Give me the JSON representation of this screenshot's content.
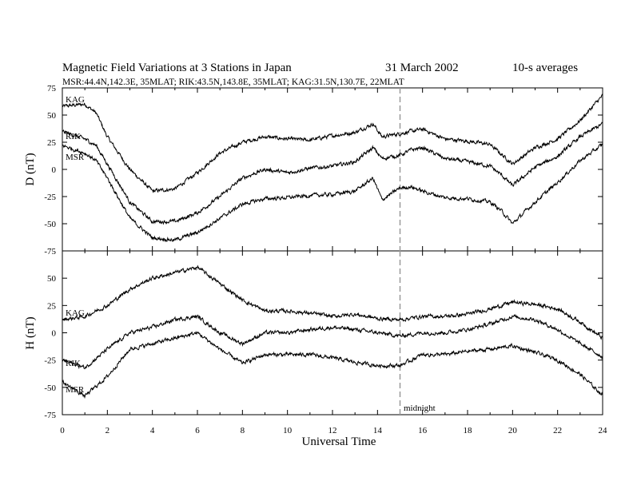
{
  "title": {
    "line1_left": "Magnetic Field Variations at 3 Stations in Japan",
    "date": "31 March   2002",
    "averaging": "10-s averages",
    "stations_line": "MSR:44.4N,142.3E, 35MLAT;  RIK:43.5N,143.8E, 35MLAT;  KAG:31.5N,130.7E, 22MLAT"
  },
  "annotation_midnight": "midnight",
  "chart_data": [
    {
      "type": "line",
      "panel": "top",
      "ylabel": "D (nT)",
      "xlabel": "",
      "xlim": [
        0,
        24
      ],
      "ylim": [
        -75,
        75
      ],
      "yticks": [
        75,
        50,
        25,
        0,
        -25,
        -50,
        -75
      ],
      "xticks": [
        0,
        2,
        4,
        6,
        8,
        10,
        12,
        14,
        16,
        18,
        20,
        22,
        24
      ],
      "vline_x": 15,
      "x": [
        0,
        1,
        1.5,
        2,
        3,
        4,
        5,
        6,
        7,
        8,
        9,
        10,
        11,
        12,
        13,
        13.8,
        14.2,
        15,
        15.5,
        16,
        17,
        18,
        19,
        19.5,
        20,
        21,
        22,
        23,
        24
      ],
      "series": [
        {
          "name": "KAG",
          "values": [
            58,
            60,
            52,
            30,
            0,
            -20,
            -18,
            -3,
            15,
            25,
            30,
            28,
            27,
            31,
            34,
            42,
            30,
            33,
            35,
            37,
            28,
            26,
            23,
            14,
            5,
            20,
            28,
            45,
            68
          ]
        },
        {
          "name": "RIK",
          "values": [
            35,
            28,
            22,
            5,
            -30,
            -48,
            -48,
            -40,
            -25,
            -8,
            0,
            -3,
            1,
            3,
            7,
            20,
            10,
            13,
            18,
            20,
            10,
            7,
            3,
            -5,
            -15,
            2,
            12,
            30,
            42
          ]
        },
        {
          "name": "MSR",
          "values": [
            22,
            15,
            8,
            -8,
            -45,
            -63,
            -65,
            -58,
            -45,
            -32,
            -27,
            -26,
            -24,
            -23,
            -20,
            -8,
            -28,
            -17,
            -16,
            -20,
            -26,
            -27,
            -30,
            -38,
            -50,
            -30,
            -12,
            8,
            23
          ]
        }
      ]
    },
    {
      "type": "line",
      "panel": "bottom",
      "ylabel": "H (nT)",
      "xlabel": "Universal Time",
      "xlim": [
        0,
        24
      ],
      "ylim": [
        -75,
        75
      ],
      "yticks": [
        50,
        25,
        0,
        -25,
        -50,
        -75
      ],
      "xticks": [
        0,
        2,
        4,
        6,
        8,
        10,
        12,
        14,
        16,
        18,
        20,
        22,
        24
      ],
      "vline_x": 15,
      "x": [
        0,
        1,
        2,
        3,
        4,
        5,
        6,
        7,
        8,
        9,
        10,
        11,
        12,
        13,
        14,
        15,
        16,
        17,
        18,
        19,
        20,
        21,
        22,
        23,
        24
      ],
      "series": [
        {
          "name": "KAG",
          "values": [
            12,
            15,
            25,
            40,
            50,
            55,
            60,
            45,
            30,
            20,
            20,
            18,
            15,
            17,
            13,
            12,
            15,
            15,
            17,
            22,
            28,
            26,
            22,
            10,
            -5
          ]
        },
        {
          "name": "RIK",
          "values": [
            -25,
            -32,
            -15,
            0,
            5,
            12,
            15,
            0,
            -10,
            0,
            0,
            3,
            5,
            3,
            0,
            -3,
            0,
            0,
            3,
            8,
            15,
            12,
            3,
            -10,
            -22
          ]
        },
        {
          "name": "MSR",
          "values": [
            -45,
            -58,
            -40,
            -15,
            -10,
            -5,
            0,
            -15,
            -28,
            -20,
            -20,
            -20,
            -23,
            -27,
            -30,
            -30,
            -20,
            -20,
            -17,
            -15,
            -12,
            -18,
            -25,
            -38,
            -57
          ]
        }
      ]
    }
  ]
}
